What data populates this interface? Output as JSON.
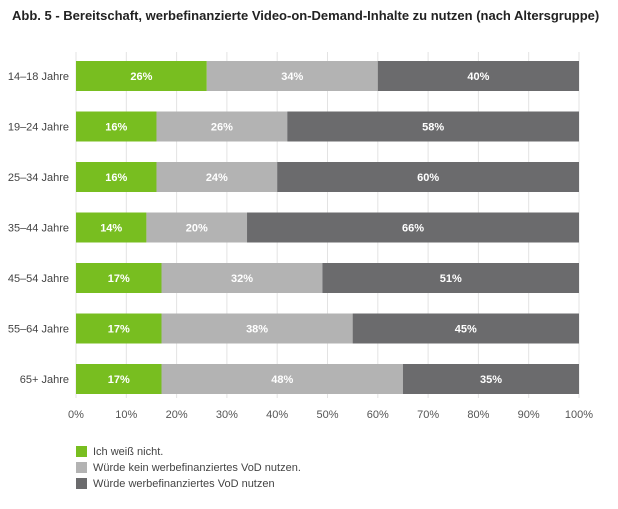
{
  "title": "Abb. 5 - Bereitschaft, werbefinanzierte Video-on-Demand-Inhalte zu nutzen (nach Altersgruppe)",
  "chart_data": {
    "type": "bar",
    "orientation": "horizontal",
    "stacked": true,
    "title": "Abb. 5 - Bereitschaft, werbefinanzierte Video-on-Demand-Inhalte zu nutzen (nach Altersgruppe)",
    "categories": [
      "14–18 Jahre",
      "19–24 Jahre",
      "25–34 Jahre",
      "35–44 Jahre",
      "45–54 Jahre",
      "55–64 Jahre",
      "65+ Jahre"
    ],
    "series": [
      {
        "name": "Ich weiß nicht.",
        "color": "#78be20",
        "values": [
          26,
          16,
          16,
          14,
          17,
          17,
          17
        ]
      },
      {
        "name": "Würde kein werbefinanziertes VoD nutzen.",
        "color": "#b3b3b3",
        "values": [
          34,
          26,
          24,
          20,
          32,
          38,
          48
        ]
      },
      {
        "name": "Würde werbefinanziertes VoD nutzen",
        "color": "#6b6b6d",
        "values": [
          40,
          58,
          60,
          66,
          51,
          45,
          35
        ]
      }
    ],
    "xlim": [
      0,
      100
    ],
    "xticks": [
      "0%",
      "10%",
      "20%",
      "30%",
      "40%",
      "50%",
      "60%",
      "70%",
      "80%",
      "90%",
      "100%"
    ],
    "value_suffix": "%",
    "grid": true,
    "legend_position": "bottom-left"
  }
}
